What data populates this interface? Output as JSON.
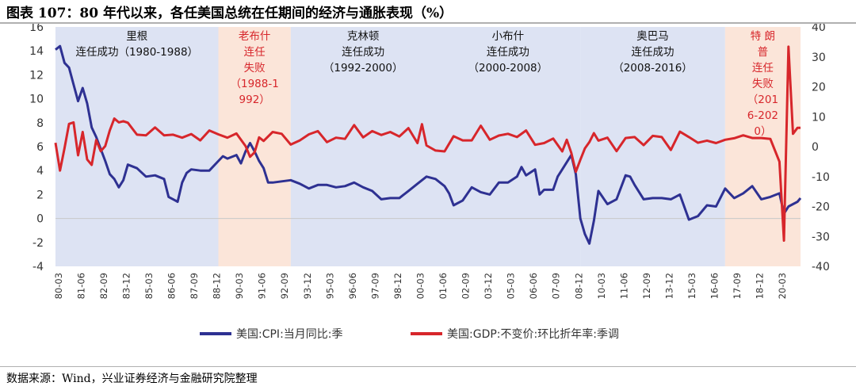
{
  "title": "图表 107：80 年代以来，各任美国总统在任期间的经济与通胀表现（%）",
  "source": "数据来源：Wind，兴业证券经济与金融研究院整理",
  "colors": {
    "cpi": "#2e3192",
    "gdp": "#d7262b",
    "success_band": "#dde3f3",
    "failure_band": "#fbe5d9"
  },
  "chart_data": {
    "type": "line",
    "xlabel": "",
    "ylabel": "",
    "left_axis": {
      "ylim": [
        -4,
        16
      ],
      "ticks": [
        "16",
        "14",
        "12",
        "10",
        "8",
        "6",
        "4",
        "2",
        "0",
        "-2",
        "-4"
      ]
    },
    "right_axis": {
      "ylim": [
        -40,
        40
      ],
      "ticks": [
        "40",
        "30",
        "20",
        "10",
        "0",
        "-10",
        "-20",
        "-30",
        "-40"
      ]
    },
    "x_start": "1980-01",
    "x_end": "2021-03",
    "x_tick_labels": [
      "80-03",
      "81-06",
      "82-09",
      "83-12",
      "85-03",
      "86-06",
      "87-09",
      "88-12",
      "90-03",
      "91-06",
      "92-09",
      "93-12",
      "95-03",
      "96-06",
      "97-09",
      "98-12",
      "00-03",
      "01-06",
      "02-09",
      "03-12",
      "05-03",
      "06-06",
      "07-09",
      "08-12",
      "10-03",
      "11-06",
      "12-09",
      "13-12",
      "15-03",
      "16-06",
      "17-09",
      "18-12",
      "20-03"
    ],
    "grid": false,
    "legend_position": "bottom",
    "periods": [
      {
        "start": "1980-01",
        "end": "1989-01",
        "type": "success",
        "label_lines": [
          "里根",
          "连任成功（1980-1988）"
        ]
      },
      {
        "start": "1989-01",
        "end": "1993-01",
        "type": "failure",
        "label_lines": [
          "老布什",
          "连任",
          "失败",
          "（1988-1",
          "992）"
        ]
      },
      {
        "start": "1993-01",
        "end": "2001-01",
        "type": "success",
        "label_lines": [
          "克林顿",
          "连任成功",
          "（1992-2000）"
        ]
      },
      {
        "start": "2001-01",
        "end": "2009-01",
        "type": "success",
        "label_lines": [
          "小布什",
          "连任成功",
          "（2000-2008）"
        ]
      },
      {
        "start": "2009-01",
        "end": "2017-01",
        "type": "success",
        "label_lines": [
          "奥巴马",
          "连任成功",
          "（2008-2016）"
        ]
      },
      {
        "start": "2017-01",
        "end": "2021-03",
        "type": "failure",
        "label_lines": [
          "特 朗",
          "普",
          "连任",
          "失败",
          "（201",
          "6-202",
          "0）"
        ]
      }
    ],
    "series": [
      {
        "name": "美国:CPI:当月同比:季",
        "axis": "left",
        "x": [
          "1980-01",
          "1980-04",
          "1980-07",
          "1980-10",
          "1981-01",
          "1981-04",
          "1981-07",
          "1981-10",
          "1982-01",
          "1982-04",
          "1982-07",
          "1982-10",
          "1983-01",
          "1983-04",
          "1983-07",
          "1983-10",
          "1984-01",
          "1984-07",
          "1985-01",
          "1985-07",
          "1986-01",
          "1986-04",
          "1986-07",
          "1986-10",
          "1987-01",
          "1987-04",
          "1987-07",
          "1988-01",
          "1988-07",
          "1989-01",
          "1989-04",
          "1989-07",
          "1990-01",
          "1990-04",
          "1990-07",
          "1990-10",
          "1991-01",
          "1991-04",
          "1991-07",
          "1991-10",
          "1992-01",
          "1992-07",
          "1993-01",
          "1993-07",
          "1994-01",
          "1994-07",
          "1995-01",
          "1995-07",
          "1996-01",
          "1996-07",
          "1997-01",
          "1997-07",
          "1998-01",
          "1998-07",
          "1999-01",
          "1999-07",
          "2000-01",
          "2000-07",
          "2001-01",
          "2001-07",
          "2001-10",
          "2002-01",
          "2002-07",
          "2003-01",
          "2003-07",
          "2004-01",
          "2004-07",
          "2005-01",
          "2005-07",
          "2005-10",
          "2006-01",
          "2006-07",
          "2006-10",
          "2007-01",
          "2007-07",
          "2007-10",
          "2008-01",
          "2008-07",
          "2008-10",
          "2009-01",
          "2009-04",
          "2009-07",
          "2009-10",
          "2010-01",
          "2010-07",
          "2011-01",
          "2011-07",
          "2011-10",
          "2012-01",
          "2012-07",
          "2013-01",
          "2013-07",
          "2014-01",
          "2014-07",
          "2015-01",
          "2015-07",
          "2016-01",
          "2016-07",
          "2017-01",
          "2017-07",
          "2018-01",
          "2018-07",
          "2019-01",
          "2019-07",
          "2020-01",
          "2020-04",
          "2020-07",
          "2020-10",
          "2021-01",
          "2021-03"
        ],
        "values": [
          14.1,
          14.4,
          13.0,
          12.6,
          11.2,
          9.8,
          10.9,
          9.6,
          7.6,
          6.8,
          5.8,
          4.8,
          3.7,
          3.3,
          2.6,
          3.2,
          4.5,
          4.2,
          3.5,
          3.6,
          3.3,
          1.8,
          1.6,
          1.4,
          3.0,
          3.8,
          4.1,
          4.0,
          4.0,
          4.8,
          5.2,
          5.0,
          5.3,
          4.6,
          5.6,
          6.3,
          5.6,
          4.8,
          4.2,
          3.0,
          3.0,
          3.1,
          3.2,
          2.9,
          2.5,
          2.8,
          2.8,
          2.6,
          2.7,
          3.0,
          2.6,
          2.3,
          1.6,
          1.7,
          1.7,
          2.3,
          2.9,
          3.5,
          3.3,
          2.7,
          2.1,
          1.1,
          1.5,
          2.6,
          2.2,
          2.0,
          3.0,
          3.0,
          3.5,
          4.3,
          3.6,
          4.1,
          2.0,
          2.4,
          2.4,
          3.5,
          4.1,
          5.3,
          3.7,
          0.0,
          -1.3,
          -2.1,
          -0.2,
          2.3,
          1.2,
          1.6,
          3.6,
          3.5,
          2.8,
          1.6,
          1.7,
          1.7,
          1.6,
          2.0,
          -0.1,
          0.2,
          1.1,
          1.0,
          2.5,
          1.7,
          2.1,
          2.7,
          1.6,
          1.8,
          2.1,
          0.4,
          1.0,
          1.2,
          1.4,
          1.7
        ]
      },
      {
        "name": "美国:GDP:不变价:环比折年率:季调",
        "axis": "right",
        "x": [
          "1980-01",
          "1980-04",
          "1980-07",
          "1980-10",
          "1981-01",
          "1981-04",
          "1981-07",
          "1981-10",
          "1982-01",
          "1982-04",
          "1982-07",
          "1982-10",
          "1983-01",
          "1983-04",
          "1983-07",
          "1983-10",
          "1984-01",
          "1984-07",
          "1985-01",
          "1985-07",
          "1986-01",
          "1986-07",
          "1987-01",
          "1987-07",
          "1988-01",
          "1988-07",
          "1989-01",
          "1989-07",
          "1990-01",
          "1990-07",
          "1990-10",
          "1991-01",
          "1991-04",
          "1991-07",
          "1992-01",
          "1992-07",
          "1993-01",
          "1993-07",
          "1994-01",
          "1994-07",
          "1995-01",
          "1995-07",
          "1996-01",
          "1996-07",
          "1997-01",
          "1997-07",
          "1998-01",
          "1998-07",
          "1999-01",
          "1999-07",
          "2000-01",
          "2000-04",
          "2000-07",
          "2001-01",
          "2001-07",
          "2002-01",
          "2002-07",
          "2003-01",
          "2003-07",
          "2004-01",
          "2004-07",
          "2005-01",
          "2005-07",
          "2006-01",
          "2006-07",
          "2007-01",
          "2007-07",
          "2008-01",
          "2008-04",
          "2008-07",
          "2008-10",
          "2009-01",
          "2009-04",
          "2009-07",
          "2009-10",
          "2010-01",
          "2010-07",
          "2011-01",
          "2011-07",
          "2012-01",
          "2012-07",
          "2013-01",
          "2013-07",
          "2014-01",
          "2014-07",
          "2015-01",
          "2015-07",
          "2016-01",
          "2016-07",
          "2017-01",
          "2017-07",
          "2018-01",
          "2018-07",
          "2019-01",
          "2019-07",
          "2020-01",
          "2020-04",
          "2020-07",
          "2020-10",
          "2021-01",
          "2021-03"
        ],
        "values": [
          1.3,
          -8.0,
          -0.5,
          7.6,
          8.1,
          -2.9,
          4.9,
          -4.3,
          -6.1,
          2.2,
          -1.5,
          0.2,
          5.4,
          9.4,
          8.1,
          8.5,
          8.0,
          4.0,
          3.8,
          6.4,
          3.8,
          4.0,
          3.0,
          4.2,
          2.1,
          5.4,
          4.1,
          3.0,
          4.4,
          0.2,
          -3.4,
          -1.9,
          3.1,
          1.9,
          4.9,
          4.3,
          0.7,
          2.1,
          4.1,
          5.2,
          1.5,
          3.0,
          2.6,
          7.2,
          3.1,
          5.2,
          3.9,
          4.9,
          3.4,
          6.2,
          1.2,
          7.5,
          0.4,
          -1.3,
          -1.6,
          3.5,
          2.1,
          2.1,
          7.0,
          2.3,
          3.7,
          4.3,
          3.2,
          5.4,
          0.6,
          1.2,
          2.7,
          -1.6,
          2.3,
          -2.1,
          -8.4,
          -4.4,
          -0.6,
          1.5,
          4.5,
          2.0,
          3.0,
          -1.5,
          2.9,
          3.2,
          0.5,
          3.6,
          3.2,
          -1.1,
          5.0,
          3.2,
          1.3,
          2.0,
          1.2,
          2.3,
          2.8,
          3.8,
          2.9,
          2.9,
          2.6,
          -5.0,
          -31.4,
          33.4,
          4.3,
          6.3,
          6.3
        ]
      }
    ]
  }
}
